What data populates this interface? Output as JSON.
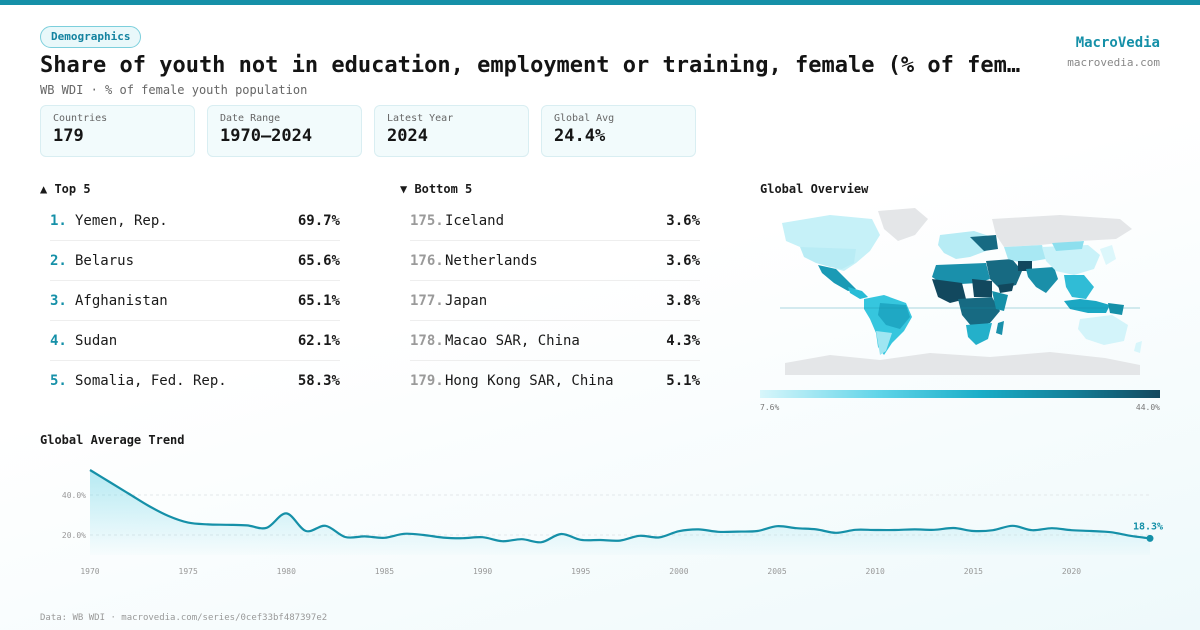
{
  "badge": "Demographics",
  "title": "Share of youth not in education, employment or training, female (% of female youth population)",
  "subtitle": "WB WDI · % of female youth population",
  "brand": {
    "name": "MacroVedia",
    "url": "macrovedia.com"
  },
  "stats": [
    {
      "label": "Countries",
      "value": "179"
    },
    {
      "label": "Date Range",
      "value": "1970–2024"
    },
    {
      "label": "Latest Year",
      "value": "2024"
    },
    {
      "label": "Global Avg",
      "value": "24.4%"
    }
  ],
  "top5": {
    "heading": "▲ Top 5",
    "items": [
      {
        "rank": "1.",
        "name": "Yemen, Rep.",
        "value": "69.7%"
      },
      {
        "rank": "2.",
        "name": "Belarus",
        "value": "65.6%"
      },
      {
        "rank": "3.",
        "name": "Afghanistan",
        "value": "65.1%"
      },
      {
        "rank": "4.",
        "name": "Sudan",
        "value": "62.1%"
      },
      {
        "rank": "5.",
        "name": "Somalia, Fed. Rep.",
        "value": "58.3%"
      }
    ]
  },
  "bottom5": {
    "heading": "▼ Bottom 5",
    "items": [
      {
        "rank": "175.",
        "name": "Iceland",
        "value": "3.6%"
      },
      {
        "rank": "176.",
        "name": "Netherlands",
        "value": "3.6%"
      },
      {
        "rank": "177.",
        "name": "Japan",
        "value": "3.8%"
      },
      {
        "rank": "178.",
        "name": "Macao SAR, China",
        "value": "4.3%"
      },
      {
        "rank": "179.",
        "name": "Hong Kong SAR, China",
        "value": "5.1%"
      }
    ]
  },
  "map": {
    "heading": "Global Overview",
    "legend_min": "7.6%",
    "legend_max": "44.0%",
    "colors": {
      "low": "#d8f6fb",
      "mid": "#1aaec8",
      "high": "#12485e",
      "nodata": "#e4e6e8"
    }
  },
  "trend": {
    "heading": "Global Average Trend",
    "last_label": "18.3%"
  },
  "footer": "Data: WB WDI · macrovedia.com/series/0cef33bf487397e2",
  "chart_data": {
    "type": "area",
    "title": "Global Average Trend",
    "x": [
      1970,
      1971,
      1972,
      1973,
      1974,
      1975,
      1976,
      1977,
      1978,
      1979,
      1980,
      1981,
      1982,
      1983,
      1984,
      1985,
      1986,
      1987,
      1988,
      1989,
      1990,
      1991,
      1992,
      1993,
      1994,
      1995,
      1996,
      1997,
      1998,
      1999,
      2000,
      2001,
      2002,
      2003,
      2004,
      2005,
      2006,
      2007,
      2008,
      2009,
      2010,
      2011,
      2012,
      2013,
      2014,
      2015,
      2016,
      2017,
      2018,
      2019,
      2020,
      2021,
      2022,
      2023,
      2024
    ],
    "series": [
      {
        "values": [
          52.5,
          46.5,
          40.5,
          34.5,
          29.5,
          26.2,
          25.3,
          25.1,
          24.8,
          23.6,
          30.8,
          22.0,
          24.6,
          19.0,
          19.3,
          18.6,
          20.6,
          20.0,
          18.7,
          18.4,
          18.9,
          16.9,
          17.9,
          16.4,
          20.5,
          17.6,
          17.5,
          17.2,
          19.6,
          18.8,
          21.9,
          22.8,
          21.6,
          21.7,
          22.0,
          24.4,
          23.4,
          22.8,
          21.1,
          22.6,
          22.5,
          22.5,
          22.8,
          22.6,
          23.5,
          22.0,
          22.4,
          24.6,
          22.4,
          23.4,
          22.4,
          22.0,
          21.4,
          19.6,
          18.3
        ]
      }
    ],
    "xticks": [
      "1970",
      "1975",
      "1980",
      "1985",
      "1990",
      "1995",
      "2000",
      "2005",
      "2010",
      "2015",
      "2020"
    ],
    "yticks": [
      "20.0%",
      "40.0%"
    ],
    "xlim": [
      1970,
      2024
    ],
    "ylim": [
      10,
      55
    ],
    "grid": true,
    "color": "#1590a8"
  }
}
